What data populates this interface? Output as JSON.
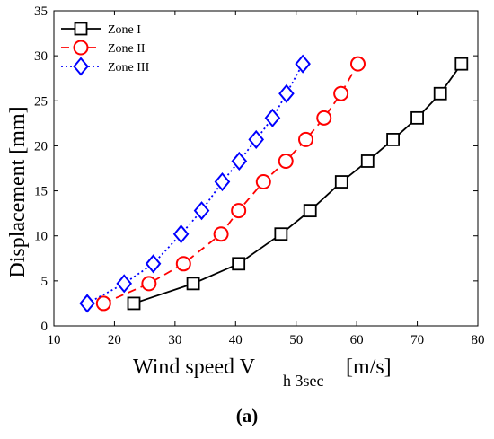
{
  "chart_data": {
    "type": "line",
    "xlabel": "Wind speed V",
    "xlabel_sub": "h 3sec",
    "xlabel_unit": "[m/s]",
    "ylabel": "Displacement [mm]",
    "xlim": [
      10,
      80
    ],
    "ylim": [
      0,
      35
    ],
    "xticks": [
      10,
      20,
      30,
      40,
      50,
      60,
      70,
      80
    ],
    "yticks": [
      0,
      5,
      10,
      15,
      20,
      25,
      30,
      35
    ],
    "grid": false,
    "legend_position": "top-left",
    "caption": "(a)",
    "series": [
      {
        "name": "Zone I",
        "color": "#000000",
        "marker": "square",
        "linestyle": "solid",
        "x": [
          23.2,
          33.0,
          40.5,
          47.5,
          52.3,
          57.5,
          61.8,
          66.0,
          70.0,
          73.8,
          77.3
        ],
        "y": [
          2.5,
          4.7,
          6.9,
          10.2,
          12.8,
          16.0,
          18.3,
          20.7,
          23.1,
          25.8,
          29.1
        ]
      },
      {
        "name": "Zone II",
        "color": "#ff0000",
        "marker": "circle",
        "linestyle": "dashed",
        "x": [
          18.2,
          25.7,
          31.4,
          37.6,
          40.5,
          44.6,
          48.3,
          51.6,
          54.6,
          57.4,
          60.2
        ],
        "y": [
          2.5,
          4.7,
          6.9,
          10.2,
          12.8,
          16.0,
          18.3,
          20.7,
          23.1,
          25.8,
          29.1
        ]
      },
      {
        "name": "Zone III",
        "color": "#0000ff",
        "marker": "diamond",
        "linestyle": "dotted",
        "x": [
          15.5,
          21.6,
          26.4,
          31.0,
          34.4,
          37.8,
          40.6,
          43.4,
          46.1,
          48.4,
          51.1
        ],
        "y": [
          2.5,
          4.7,
          6.9,
          10.2,
          12.8,
          16.0,
          18.3,
          20.7,
          23.1,
          25.8,
          29.1
        ]
      }
    ]
  }
}
